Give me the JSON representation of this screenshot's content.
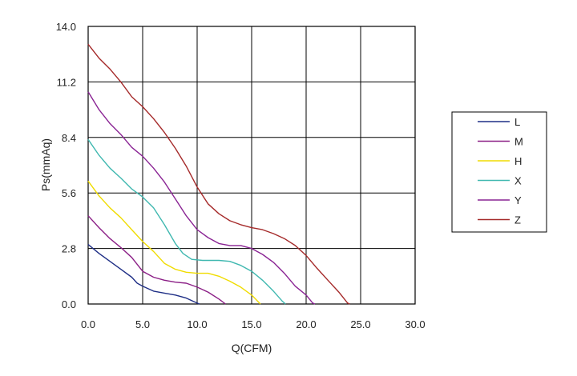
{
  "chart_data": {
    "type": "line",
    "title": "",
    "xlabel": "Q(CFM)",
    "ylabel": "Ps(mmAq)",
    "xlim": [
      0,
      30
    ],
    "ylim": [
      0,
      14
    ],
    "x_ticks": [
      "0.0",
      "5.0",
      "10.0",
      "15.0",
      "20.0",
      "25.0",
      "30.0"
    ],
    "y_ticks": [
      "0.0",
      "2.8",
      "5.6",
      "8.4",
      "11.2",
      "14.0"
    ],
    "x_tick_values": [
      0,
      5,
      10,
      15,
      20,
      25,
      30
    ],
    "y_tick_values": [
      0,
      2.8,
      5.6,
      8.4,
      11.2,
      14.0
    ],
    "grid": true,
    "legend_position": "right",
    "series": [
      {
        "name": "L",
        "color": "#1f2f86",
        "points": [
          [
            0,
            3.0
          ],
          [
            1,
            2.55
          ],
          [
            2,
            2.15
          ],
          [
            3,
            1.75
          ],
          [
            4,
            1.35
          ],
          [
            4.5,
            1.05
          ],
          [
            5,
            0.9
          ],
          [
            6,
            0.65
          ],
          [
            7,
            0.55
          ],
          [
            8,
            0.45
          ],
          [
            9,
            0.3
          ],
          [
            9.7,
            0.12
          ],
          [
            10.2,
            0.0
          ]
        ]
      },
      {
        "name": "M",
        "color": "#8b1f86",
        "points": [
          [
            0,
            4.45
          ],
          [
            1,
            3.85
          ],
          [
            2,
            3.3
          ],
          [
            3,
            2.85
          ],
          [
            4,
            2.35
          ],
          [
            4.5,
            2.0
          ],
          [
            5,
            1.65
          ],
          [
            6,
            1.35
          ],
          [
            7,
            1.2
          ],
          [
            8,
            1.1
          ],
          [
            9,
            1.05
          ],
          [
            10,
            0.85
          ],
          [
            11,
            0.6
          ],
          [
            12,
            0.25
          ],
          [
            12.6,
            0.0
          ]
        ]
      },
      {
        "name": "H",
        "color": "#f0dc00",
        "points": [
          [
            0,
            6.2
          ],
          [
            1,
            5.45
          ],
          [
            2,
            4.85
          ],
          [
            3,
            4.35
          ],
          [
            4,
            3.75
          ],
          [
            5,
            3.15
          ],
          [
            6,
            2.65
          ],
          [
            7,
            2.05
          ],
          [
            8,
            1.75
          ],
          [
            9,
            1.6
          ],
          [
            10,
            1.55
          ],
          [
            11,
            1.55
          ],
          [
            12,
            1.4
          ],
          [
            13,
            1.15
          ],
          [
            14,
            0.85
          ],
          [
            15,
            0.45
          ],
          [
            15.8,
            0.0
          ]
        ]
      },
      {
        "name": "X",
        "color": "#40b8b0",
        "points": [
          [
            0,
            8.3
          ],
          [
            1,
            7.5
          ],
          [
            2,
            6.85
          ],
          [
            3,
            6.35
          ],
          [
            4,
            5.8
          ],
          [
            5,
            5.4
          ],
          [
            6,
            4.85
          ],
          [
            7,
            4.0
          ],
          [
            8,
            3.05
          ],
          [
            8.7,
            2.55
          ],
          [
            9.5,
            2.25
          ],
          [
            10.5,
            2.2
          ],
          [
            12,
            2.2
          ],
          [
            13,
            2.15
          ],
          [
            14,
            1.95
          ],
          [
            15,
            1.65
          ],
          [
            16,
            1.2
          ],
          [
            17,
            0.65
          ],
          [
            17.8,
            0.15
          ],
          [
            18.1,
            0.0
          ]
        ]
      },
      {
        "name": "Y",
        "color": "#8a2494",
        "points": [
          [
            0,
            10.7
          ],
          [
            1,
            9.8
          ],
          [
            2,
            9.1
          ],
          [
            3,
            8.55
          ],
          [
            4,
            7.9
          ],
          [
            5,
            7.45
          ],
          [
            6,
            6.85
          ],
          [
            7,
            6.15
          ],
          [
            8,
            5.3
          ],
          [
            9,
            4.45
          ],
          [
            10,
            3.75
          ],
          [
            11,
            3.35
          ],
          [
            12,
            3.05
          ],
          [
            13,
            2.95
          ],
          [
            14,
            2.95
          ],
          [
            15,
            2.8
          ],
          [
            16,
            2.5
          ],
          [
            17,
            2.1
          ],
          [
            18,
            1.55
          ],
          [
            19,
            0.9
          ],
          [
            20,
            0.45
          ],
          [
            20.6,
            0.05
          ],
          [
            20.8,
            0.0
          ]
        ]
      },
      {
        "name": "Z",
        "color": "#a52a2a",
        "points": [
          [
            0,
            13.1
          ],
          [
            1,
            12.4
          ],
          [
            2,
            11.85
          ],
          [
            3,
            11.2
          ],
          [
            4,
            10.45
          ],
          [
            5,
            9.95
          ],
          [
            6,
            9.35
          ],
          [
            7,
            8.65
          ],
          [
            8,
            7.85
          ],
          [
            9,
            6.95
          ],
          [
            10,
            5.9
          ],
          [
            11,
            5.05
          ],
          [
            12,
            4.55
          ],
          [
            13,
            4.2
          ],
          [
            14,
            4.0
          ],
          [
            15,
            3.85
          ],
          [
            16,
            3.75
          ],
          [
            17,
            3.55
          ],
          [
            18,
            3.3
          ],
          [
            19,
            2.95
          ],
          [
            20,
            2.45
          ],
          [
            21,
            1.8
          ],
          [
            22,
            1.2
          ],
          [
            23,
            0.6
          ],
          [
            23.8,
            0.05
          ],
          [
            24,
            0.0
          ]
        ]
      }
    ]
  }
}
